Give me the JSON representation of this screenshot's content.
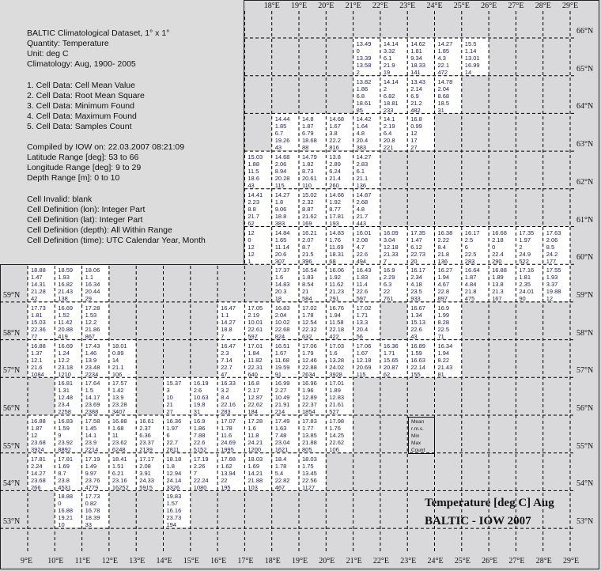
{
  "info": {
    "lines": [
      "BALTIC Climatological Dataset, 1° x 1°",
      "Quantity: Temperature",
      "Unit: deg C",
      "Climatology: Aug, 1900- 2005",
      "",
      "1. Cell Data: Cell Mean Value",
      "2. Cell Data: Root Mean Square",
      "3. Cell Data: Minimum Found",
      "4. Cell Data: Maximum Found",
      "5. Cell Data: Samples Count",
      "",
      "Compiled by IOW on: 22.03.2007 08:21:09",
      "Latitude Range [deg]: 53 to 66",
      "Longitude Range [deg]: 9 to 29",
      "Depth Range [m]: 0 to 10",
      "",
      "Cell Invalid: blank",
      "Cell Definition (lon): Integer Part",
      "Cell Definition (lat): Integer Part",
      "Cell Definition (depth): All Within Range",
      "Cell Definition (time): UTC Calendar Year, Month"
    ]
  },
  "axes": {
    "top_lon_labels": [
      "18°E",
      "19°E",
      "20°E",
      "21°E",
      "22°E",
      "23°E",
      "24°E",
      "25°E",
      "26°E",
      "27°E",
      "28°E",
      "29°E"
    ],
    "bottom_lon_labels": [
      "9°E",
      "10°E",
      "11°E",
      "12°E",
      "13°E",
      "14°E",
      "15°E",
      "16°E",
      "17°E",
      "18°E",
      "19°E",
      "20°E",
      "21°E",
      "22°E",
      "23°E",
      "24°E",
      "25°E",
      "26°E",
      "27°E",
      "28°E",
      "29°E"
    ],
    "left_lat_labels": [
      "59°N",
      "58°N",
      "57°N",
      "56°N",
      "55°N",
      "54°N",
      "53°N"
    ],
    "right_lat_labels": [
      "66°N",
      "65°N",
      "64°N",
      "63°N",
      "62°N",
      "61°N",
      "60°N",
      "59°N",
      "58°N",
      "57°N",
      "56°N",
      "55°N",
      "54°N",
      "53°N"
    ]
  },
  "legend": {
    "lines": [
      "Mean",
      "r.m.s.",
      "Min",
      "Max",
      "Count"
    ],
    "lon": 23,
    "lat": 55
  },
  "title": {
    "line1": "Temperature [deg C] Aug",
    "line2": "BALTIC - IOW 2007"
  },
  "colors": {
    "sea": "#ffffff",
    "land": "#d9d9db",
    "text": "#1c1c4a",
    "grid": "#000000"
  },
  "cells": [
    {
      "lon": 21,
      "lat": 65,
      "v": [
        "13.49",
        "0",
        "13.39",
        "13.58",
        "2"
      ]
    },
    {
      "lon": 22,
      "lat": 65,
      "v": [
        "14.14",
        "3.32",
        "6.1",
        "21.9",
        "19"
      ]
    },
    {
      "lon": 23,
      "lat": 65,
      "v": [
        "14.62",
        "1.81",
        "9.34",
        "18.33",
        "141"
      ]
    },
    {
      "lon": 24,
      "lat": 65,
      "v": [
        "14.27",
        "1.85",
        "4.3",
        "22.1",
        "472"
      ]
    },
    {
      "lon": 25,
      "lat": 65,
      "v": [
        "15.5",
        "1.14",
        "13.01",
        "16.99",
        "14"
      ]
    },
    {
      "lon": 21,
      "lat": 64,
      "v": [
        "13.82",
        "1.86",
        "6.8",
        "18.61",
        "85"
      ]
    },
    {
      "lon": 22,
      "lat": 64,
      "v": [
        "14.14",
        "2",
        "6.82",
        "18.81",
        "233"
      ]
    },
    {
      "lon": 23,
      "lat": 64,
      "v": [
        "13.43",
        "2.14",
        "6.9",
        "21.2",
        "482"
      ]
    },
    {
      "lon": 24,
      "lat": 64,
      "v": [
        "14.78",
        "2.04",
        "8.68",
        "18.5",
        "31"
      ]
    },
    {
      "lon": 18,
      "lat": 63,
      "v": [
        "14.44",
        "1.85",
        "6.7",
        "19.26",
        "43"
      ]
    },
    {
      "lon": 19,
      "lat": 63,
      "v": [
        "14.8",
        "1.87",
        "6.79",
        "18.68",
        "88"
      ]
    },
    {
      "lon": 20,
      "lat": 63,
      "v": [
        "14.68",
        "1.67",
        "3.8",
        "22.2",
        "816"
      ]
    },
    {
      "lon": 21,
      "lat": 63,
      "v": [
        "14.42",
        "1.64",
        "4.8",
        "20.4",
        "383"
      ]
    },
    {
      "lon": 22,
      "lat": 63,
      "v": [
        "14.1",
        "2.19",
        "6.4",
        "20.8",
        "221"
      ]
    },
    {
      "lon": 23,
      "lat": 63,
      "v": [
        "16.8",
        "0.99",
        "12",
        "17",
        "27"
      ]
    },
    {
      "lon": 17,
      "lat": 62,
      "v": [
        "15.03",
        "1.88",
        "11.5",
        "18.6",
        "43"
      ]
    },
    {
      "lon": 18,
      "lat": 62,
      "v": [
        "14.68",
        "2.06",
        "8.94",
        "20.28",
        "115"
      ]
    },
    {
      "lon": 19,
      "lat": 62,
      "v": [
        "14.79",
        "1.82",
        "8.73",
        "20.61",
        "110"
      ]
    },
    {
      "lon": 20,
      "lat": 62,
      "v": [
        "13.8",
        "2.89",
        "6.24",
        "21.4",
        "260"
      ]
    },
    {
      "lon": 21,
      "lat": 62,
      "v": [
        "14.27",
        "2.83",
        "6.1",
        "21.1",
        "136"
      ]
    },
    {
      "lon": 17,
      "lat": 61,
      "v": [
        "14.41",
        "2.23",
        "8.8",
        "21.7",
        "62"
      ]
    },
    {
      "lon": 18,
      "lat": 61,
      "v": [
        "14.27",
        "1.8",
        "9.06",
        "18.8",
        "383"
      ]
    },
    {
      "lon": 19,
      "lat": 61,
      "v": [
        "15.02",
        "2.32",
        "8.87",
        "21.62",
        "169"
      ]
    },
    {
      "lon": 20,
      "lat": 61,
      "v": [
        "14.66",
        "1.92",
        "8.77",
        "17.81",
        "193"
      ]
    },
    {
      "lon": 21,
      "lat": 61,
      "v": [
        "14.87",
        "2.68",
        "4.8",
        "21.7",
        "443"
      ]
    },
    {
      "lon": 17,
      "lat": 60,
      "v": [
        "12",
        "0",
        "12",
        "12",
        "1"
      ]
    },
    {
      "lon": 18,
      "lat": 60,
      "v": [
        "14.84",
        "1.65",
        "11.14",
        "20.6",
        "307"
      ]
    },
    {
      "lon": 19,
      "lat": 60,
      "v": [
        "16.21",
        "2.07",
        "8.7",
        "21.5",
        "396"
      ]
    },
    {
      "lon": 20,
      "lat": 60,
      "v": [
        "14.83",
        "1.76",
        "11.69",
        "18.31",
        "68"
      ]
    },
    {
      "lon": 21,
      "lat": 60,
      "v": [
        "16.01",
        "2.08",
        "4.7",
        "22.6",
        "494"
      ]
    },
    {
      "lon": 22,
      "lat": 60,
      "v": [
        "16.09",
        "3.04",
        "12.18",
        "21.33",
        "7"
      ]
    },
    {
      "lon": 23,
      "lat": 60,
      "v": [
        "17.35",
        "1.47",
        "6.12",
        "22.73",
        "20"
      ]
    },
    {
      "lon": 24,
      "lat": 60,
      "v": [
        "16.38",
        "2.22",
        "8.4",
        "21.8",
        "136"
      ]
    },
    {
      "lon": 25,
      "lat": 60,
      "v": [
        "16.17",
        "2.5",
        "6",
        "22.5",
        "283"
      ]
    },
    {
      "lon": 26,
      "lat": 60,
      "v": [
        "16.68",
        "2.18",
        "0",
        "22.4",
        "290"
      ]
    },
    {
      "lon": 27,
      "lat": 60,
      "v": [
        "17.35",
        "1.97",
        "2",
        "24.9",
        "522"
      ]
    },
    {
      "lon": 28,
      "lat": 60,
      "v": [
        "17.63",
        "2.06",
        "8.5",
        "24.2",
        "177"
      ]
    },
    {
      "lon": 9,
      "lat": 59,
      "v": [
        "18.88",
        "1.47",
        "14.31",
        "21.28",
        "42"
      ]
    },
    {
      "lon": 10,
      "lat": 59,
      "v": [
        "18.59",
        "1.93",
        "16.82",
        "21.43",
        "138"
      ]
    },
    {
      "lon": 11,
      "lat": 59,
      "v": [
        "18.06",
        "1.1",
        "16.34",
        "20.44",
        "29"
      ]
    },
    {
      "lon": 18,
      "lat": 59,
      "v": [
        "17.37",
        "1.6",
        "14.83",
        "20.3",
        "18"
      ]
    },
    {
      "lon": 19,
      "lat": 59,
      "v": [
        "16.54",
        "1.83",
        "8.54",
        "21",
        "584"
      ]
    },
    {
      "lon": 20,
      "lat": 59,
      "v": [
        "16.06",
        "1.92",
        "11.62",
        "21.23",
        "291"
      ]
    },
    {
      "lon": 21,
      "lat": 59,
      "v": [
        "16.43",
        "1.83",
        "11.4",
        "22.6",
        "597"
      ]
    },
    {
      "lon": 22,
      "lat": 59,
      "v": [
        "16.9",
        "2.29",
        "6.3",
        "22",
        "761"
      ]
    },
    {
      "lon": 23,
      "lat": 59,
      "v": [
        "16.17",
        "2.34",
        "4.18",
        "23.5",
        "933"
      ]
    },
    {
      "lon": 24,
      "lat": 59,
      "v": [
        "16.27",
        "1.94",
        "4.67",
        "22.8",
        "897"
      ]
    },
    {
      "lon": 25,
      "lat": 59,
      "v": [
        "16.64",
        "1.87",
        "4.84",
        "21.8",
        "475"
      ]
    },
    {
      "lon": 26,
      "lat": 59,
      "v": [
        "16.88",
        "1.89",
        "13.8",
        "21.3",
        "167"
      ]
    },
    {
      "lon": 27,
      "lat": 59,
      "v": [
        "17.16",
        "1.81",
        "2.35",
        "24.01",
        "90"
      ]
    },
    {
      "lon": 28,
      "lat": 59,
      "v": [
        "17.55",
        "1.93",
        "3.37",
        "19.88",
        "12"
      ]
    },
    {
      "lon": 9,
      "lat": 58,
      "v": [
        "17.73",
        "1.81",
        "15.03",
        "22.36",
        "77"
      ]
    },
    {
      "lon": 10,
      "lat": 58,
      "v": [
        "16.69",
        "1.52",
        "11.42",
        "20.88",
        "419"
      ]
    },
    {
      "lon": 11,
      "lat": 58,
      "v": [
        "17.28",
        "1.53",
        "12.2",
        "21.86",
        "867"
      ]
    },
    {
      "lon": 16,
      "lat": 58,
      "v": [
        "16.47",
        "1.1",
        "14.27",
        "18.8",
        "7"
      ]
    },
    {
      "lon": 17,
      "lat": 58,
      "v": [
        "17.05",
        "2.19",
        "10.01",
        "22.61",
        "597"
      ]
    },
    {
      "lon": 18,
      "lat": 58,
      "v": [
        "16.83",
        "2.04",
        "10.02",
        "22.68",
        "824"
      ]
    },
    {
      "lon": 19,
      "lat": 58,
      "v": [
        "17.02",
        "1.78",
        "12.54",
        "22.32",
        "632"
      ]
    },
    {
      "lon": 20,
      "lat": 58,
      "v": [
        "16.76",
        "1.94",
        "11.58",
        "22.18",
        "422"
      ]
    },
    {
      "lon": 21,
      "lat": 58,
      "v": [
        "17.02",
        "1.71",
        "13.3",
        "20.4",
        "56"
      ]
    },
    {
      "lon": 23,
      "lat": 58,
      "v": [
        "16.67",
        "1.34",
        "15.13",
        "22.6",
        "43"
      ]
    },
    {
      "lon": 24,
      "lat": 58,
      "v": [
        "16.9",
        "1.99",
        "8.28",
        "22.5",
        "71"
      ]
    },
    {
      "lon": 9,
      "lat": 57,
      "v": [
        "16.88",
        "1.37",
        "12.1",
        "21.6",
        "1084"
      ]
    },
    {
      "lon": 10,
      "lat": 57,
      "v": [
        "16.69",
        "1.24",
        "12.2",
        "23.18",
        "1210"
      ]
    },
    {
      "lon": 11,
      "lat": 57,
      "v": [
        "17.43",
        "1.46",
        "13.9",
        "23.48",
        "2234"
      ]
    },
    {
      "lon": 12,
      "lat": 57,
      "v": [
        "18.01",
        "0.89",
        "14",
        "21.1",
        "106"
      ]
    },
    {
      "lon": 16,
      "lat": 57,
      "v": [
        "16.47",
        "2.3",
        "7.14",
        "22.7",
        "47"
      ]
    },
    {
      "lon": 17,
      "lat": 57,
      "v": [
        "17.01",
        "1.84",
        "11.82",
        "22.31",
        "640"
      ]
    },
    {
      "lon": 18,
      "lat": 57,
      "v": [
        "16.51",
        "1.67",
        "11.68",
        "19.59",
        "91"
      ]
    },
    {
      "lon": 19,
      "lat": 57,
      "v": [
        "17.06",
        "1.79",
        "12.46",
        "22.88",
        "2634"
      ]
    },
    {
      "lon": 20,
      "lat": 57,
      "v": [
        "17.03",
        "1.6",
        "13.28",
        "24.02",
        "3928"
      ]
    },
    {
      "lon": 21,
      "lat": 57,
      "v": [
        "17.06",
        "1.67",
        "12.18",
        "20.69",
        "115"
      ]
    },
    {
      "lon": 22,
      "lat": 57,
      "v": [
        "16.36",
        "1.71",
        "15.65",
        "20.87",
        "62"
      ]
    },
    {
      "lon": 23,
      "lat": 57,
      "v": [
        "16.89",
        "1.59",
        "16.63",
        "22.14",
        "155"
      ]
    },
    {
      "lon": 24,
      "lat": 57,
      "v": [
        "16.34",
        "1.94",
        "8.22",
        "21.43",
        "81"
      ]
    },
    {
      "lon": 10,
      "lat": 56,
      "v": [
        "16.81",
        "1.31",
        "12.48",
        "23.4",
        "2258"
      ]
    },
    {
      "lon": 11,
      "lat": 56,
      "v": [
        "17.64",
        "1.5",
        "14.17",
        "23.69",
        "2388"
      ]
    },
    {
      "lon": 12,
      "lat": 56,
      "v": [
        "17.57",
        "1.42",
        "13.9",
        "23.28",
        "3407"
      ]
    },
    {
      "lon": 14,
      "lat": 56,
      "v": [
        "15.37",
        "3",
        "10",
        "21",
        "27"
      ]
    },
    {
      "lon": 15,
      "lat": 56,
      "v": [
        "16.19",
        "2.6",
        "10.63",
        "19.8",
        "31"
      ]
    },
    {
      "lon": 16,
      "lat": 56,
      "v": [
        "16.33",
        "3.2",
        "8.4",
        "22.16",
        "283"
      ]
    },
    {
      "lon": 17,
      "lat": 56,
      "v": [
        "16.8",
        "2.17",
        "12.87",
        "22.62",
        "184"
      ]
    },
    {
      "lon": 18,
      "lat": 56,
      "v": [
        "16.99",
        "2.27",
        "10.49",
        "21.91",
        "214"
      ]
    },
    {
      "lon": 19,
      "lat": 56,
      "v": [
        "16.96",
        "1.96",
        "12.89",
        "22.37",
        "1854"
      ]
    },
    {
      "lon": 20,
      "lat": 56,
      "v": [
        "17.01",
        "1.89",
        "12.83",
        "21.61",
        "527"
      ]
    },
    {
      "lon": 9,
      "lat": 55,
      "v": [
        "16.88",
        "1.87",
        "12",
        "23.68",
        "3924"
      ]
    },
    {
      "lon": 10,
      "lat": 55,
      "v": [
        "16.83",
        "1.59",
        "9",
        "23.92",
        "8892"
      ]
    },
    {
      "lon": 11,
      "lat": 55,
      "v": [
        "17.58",
        "1.45",
        "14.1",
        "23.9",
        "2214"
      ]
    },
    {
      "lon": 12,
      "lat": 55,
      "v": [
        "16.88",
        "1.68",
        "11",
        "23.62",
        "6248"
      ]
    },
    {
      "lon": 13,
      "lat": 55,
      "v": [
        "16.61",
        "2.37",
        "6.36",
        "23.37",
        "2139"
      ]
    },
    {
      "lon": 14,
      "lat": 55,
      "v": [
        "16.36",
        "1.97",
        "6",
        "22.7",
        "2811"
      ]
    },
    {
      "lon": 15,
      "lat": 55,
      "v": [
        "16.9",
        "1.86",
        "7.88",
        "22.6",
        "5152"
      ]
    },
    {
      "lon": 16,
      "lat": 55,
      "v": [
        "17.07",
        "1.78",
        "11.6",
        "24.69",
        "1995"
      ]
    },
    {
      "lon": 17,
      "lat": 55,
      "v": [
        "17.28",
        "1.6",
        "11.8",
        "24.21",
        "1200"
      ]
    },
    {
      "lon": 18,
      "lat": 55,
      "v": [
        "17.49",
        "1.63",
        "7.48",
        "23.04",
        "1621"
      ]
    },
    {
      "lon": 19,
      "lat": 55,
      "v": [
        "17.83",
        "1.77",
        "13.85",
        "21.88",
        "805"
      ]
    },
    {
      "lon": 20,
      "lat": 55,
      "v": [
        "17.98",
        "1.76",
        "14.25",
        "22.62",
        "106"
      ]
    },
    {
      "lon": 9,
      "lat": 54,
      "v": [
        "17.81",
        "2.24",
        "14.27",
        "23.68",
        "266"
      ]
    },
    {
      "lon": 10,
      "lat": 54,
      "v": [
        "17.81",
        "1.69",
        "8.7",
        "23.8",
        "4531"
      ]
    },
    {
      "lon": 11,
      "lat": 54,
      "v": [
        "17.19",
        "1.49",
        "9.97",
        "23.76",
        "4779"
      ]
    },
    {
      "lon": 12,
      "lat": 54,
      "v": [
        "18.41",
        "1.51",
        "6.21",
        "23.16",
        "16252"
      ]
    },
    {
      "lon": 13,
      "lat": 54,
      "v": [
        "17.17",
        "2.08",
        "3.91",
        "24.33",
        "5915"
      ]
    },
    {
      "lon": 14,
      "lat": 54,
      "v": [
        "18.18",
        "1.8",
        "12.94",
        "24.14",
        "3326"
      ]
    },
    {
      "lon": 15,
      "lat": 54,
      "v": [
        "17.19",
        "2.26",
        "7",
        "22.24",
        "1080"
      ]
    },
    {
      "lon": 16,
      "lat": 54,
      "v": [
        "17.68",
        "1.62",
        "13.94",
        "22",
        "195"
      ]
    },
    {
      "lon": 17,
      "lat": 54,
      "v": [
        "18.03",
        "1.69",
        "14.21",
        "21.88",
        "103"
      ]
    },
    {
      "lon": 18,
      "lat": 54,
      "v": [
        "18.4",
        "1.78",
        "5.4",
        "22.82",
        "467"
      ]
    },
    {
      "lon": 19,
      "lat": 54,
      "v": [
        "18.03",
        "1.75",
        "13.45",
        "22.56",
        "1127"
      ]
    },
    {
      "lon": 10,
      "lat": 53,
      "v": [
        "18.88",
        "0",
        "16.88",
        "19.21",
        "10"
      ]
    },
    {
      "lon": 11,
      "lat": 53,
      "v": [
        "17.73",
        "0.82",
        "16.78",
        "18.39",
        "33"
      ]
    },
    {
      "lon": 14,
      "lat": 53,
      "v": [
        "19.83",
        "1.57",
        "16.16",
        "23.73",
        "194"
      ]
    }
  ]
}
